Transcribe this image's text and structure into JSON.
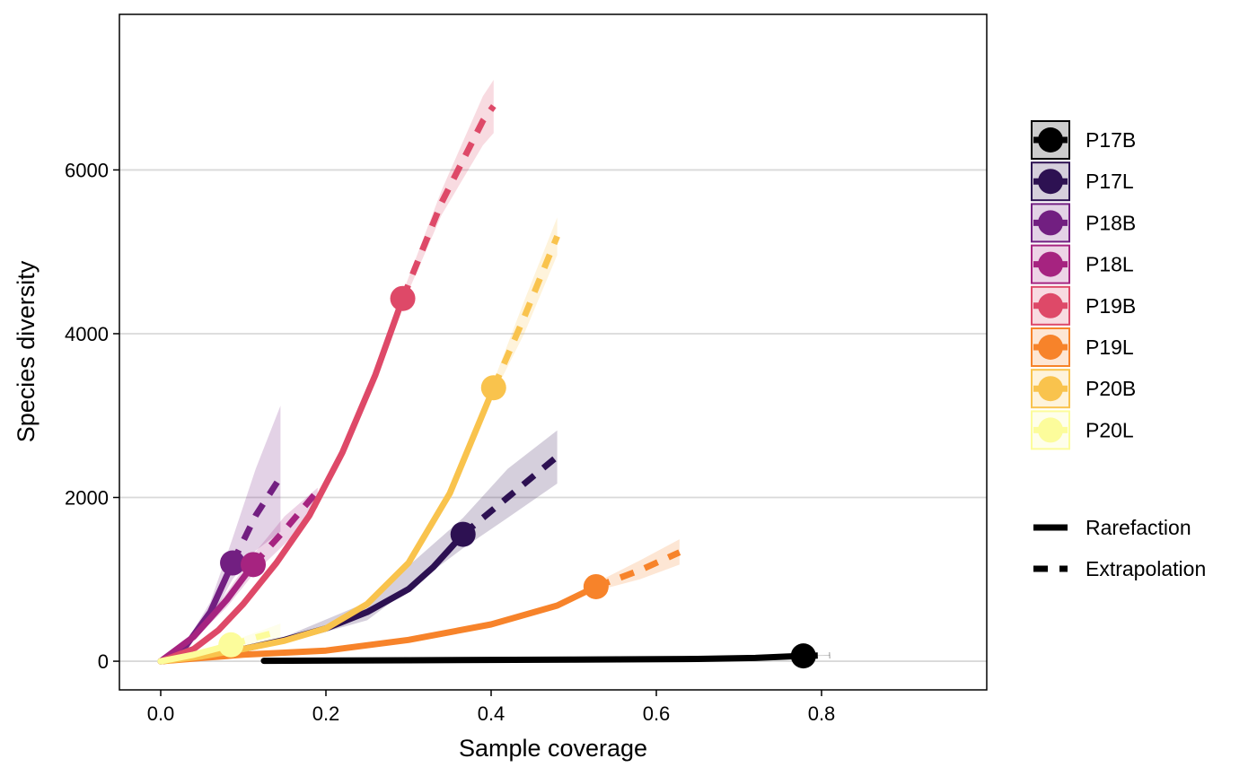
{
  "chart_data": {
    "type": "line",
    "xlabel": "Sample coverage",
    "ylabel": "Species diversity",
    "xlim": [
      -0.05,
      1.0
    ],
    "ylim": [
      -350,
      7900
    ],
    "x_ticks": [
      0.0,
      0.2,
      0.4,
      0.6,
      0.8
    ],
    "x_tick_labels": [
      "0.0",
      "0.2",
      "0.4",
      "0.6",
      "0.8"
    ],
    "y_ticks": [
      0,
      2000,
      4000,
      6000
    ],
    "y_tick_labels": [
      "0",
      "2000",
      "4000",
      "6000"
    ],
    "grid": "horizontal major",
    "legend_position": "right",
    "line_types": [
      {
        "label": "Rarefaction",
        "dash": "solid"
      },
      {
        "label": "Extrapolation",
        "dash": "dashed"
      }
    ],
    "series": [
      {
        "name": "P17B",
        "color": "#000000",
        "rarefaction": [
          [
            0.125,
            5
          ],
          [
            0.3,
            12
          ],
          [
            0.5,
            20
          ],
          [
            0.65,
            28
          ],
          [
            0.72,
            40
          ],
          [
            0.778,
            65
          ]
        ],
        "observed": [
          0.778,
          65
        ],
        "extrapolation": [
          [
            0.778,
            65
          ],
          [
            0.81,
            72
          ]
        ],
        "ci_upper": [
          [
            0.778,
            68
          ],
          [
            0.81,
            78
          ]
        ],
        "ci_lower": [
          [
            0.778,
            62
          ],
          [
            0.81,
            66
          ]
        ]
      },
      {
        "name": "P17L",
        "color": "#2d1152",
        "rarefaction": [
          [
            0.0,
            0
          ],
          [
            0.05,
            60
          ],
          [
            0.1,
            150
          ],
          [
            0.15,
            260
          ],
          [
            0.2,
            400
          ],
          [
            0.25,
            600
          ],
          [
            0.3,
            880
          ],
          [
            0.33,
            1150
          ],
          [
            0.366,
            1550
          ]
        ],
        "observed": [
          0.366,
          1550
        ],
        "extrapolation": [
          [
            0.366,
            1550
          ],
          [
            0.42,
            2000
          ],
          [
            0.48,
            2500
          ]
        ],
        "ci_upper": [
          [
            0.15,
            300
          ],
          [
            0.25,
            720
          ],
          [
            0.366,
            1750
          ],
          [
            0.42,
            2350
          ],
          [
            0.48,
            2820
          ]
        ],
        "ci_lower": [
          [
            0.15,
            220
          ],
          [
            0.25,
            500
          ],
          [
            0.366,
            1380
          ],
          [
            0.42,
            1750
          ],
          [
            0.48,
            2170
          ]
        ]
      },
      {
        "name": "P18B",
        "color": "#721f81",
        "rarefaction": [
          [
            0.0,
            0
          ],
          [
            0.03,
            180
          ],
          [
            0.06,
            600
          ],
          [
            0.087,
            1200
          ]
        ],
        "observed": [
          0.087,
          1200
        ],
        "extrapolation": [
          [
            0.087,
            1200
          ],
          [
            0.115,
            1780
          ],
          [
            0.145,
            2250
          ]
        ],
        "ci_upper": [
          [
            0.03,
            220
          ],
          [
            0.06,
            720
          ],
          [
            0.087,
            1500
          ],
          [
            0.115,
            2350
          ],
          [
            0.145,
            3120
          ]
        ],
        "ci_lower": [
          [
            0.03,
            150
          ],
          [
            0.06,
            500
          ],
          [
            0.087,
            1000
          ],
          [
            0.115,
            1350
          ],
          [
            0.145,
            1580
          ]
        ]
      },
      {
        "name": "P18L",
        "color": "#a62380",
        "rarefaction": [
          [
            0.0,
            0
          ],
          [
            0.04,
            300
          ],
          [
            0.08,
            750
          ],
          [
            0.112,
            1180
          ]
        ],
        "observed": [
          0.112,
          1180
        ],
        "extrapolation": [
          [
            0.112,
            1180
          ],
          [
            0.15,
            1600
          ],
          [
            0.19,
            2080
          ]
        ],
        "ci_upper": [
          [
            0.04,
            340
          ],
          [
            0.08,
            840
          ],
          [
            0.112,
            1300
          ],
          [
            0.15,
            1770
          ],
          [
            0.19,
            2120
          ]
        ],
        "ci_lower": [
          [
            0.04,
            260
          ],
          [
            0.08,
            660
          ],
          [
            0.112,
            1060
          ],
          [
            0.15,
            1430
          ],
          [
            0.19,
            1880
          ]
        ]
      },
      {
        "name": "P19B",
        "color": "#de4968",
        "rarefaction": [
          [
            0.0,
            0
          ],
          [
            0.04,
            150
          ],
          [
            0.07,
            380
          ],
          [
            0.1,
            700
          ],
          [
            0.14,
            1200
          ],
          [
            0.18,
            1780
          ],
          [
            0.22,
            2550
          ],
          [
            0.26,
            3500
          ],
          [
            0.293,
            4430
          ]
        ],
        "observed": [
          0.293,
          4430
        ],
        "extrapolation": [
          [
            0.293,
            4430
          ],
          [
            0.34,
            5600
          ],
          [
            0.39,
            6600
          ],
          [
            0.403,
            6780
          ]
        ],
        "ci_upper": [
          [
            0.293,
            4500
          ],
          [
            0.34,
            5750
          ],
          [
            0.39,
            6900
          ],
          [
            0.403,
            7100
          ]
        ],
        "ci_lower": [
          [
            0.293,
            4360
          ],
          [
            0.34,
            5450
          ],
          [
            0.39,
            6300
          ],
          [
            0.403,
            6450
          ]
        ]
      },
      {
        "name": "P19L",
        "color": "#f7832a",
        "rarefaction": [
          [
            0.0,
            0
          ],
          [
            0.05,
            40
          ],
          [
            0.1,
            80
          ],
          [
            0.2,
            130
          ],
          [
            0.3,
            260
          ],
          [
            0.4,
            450
          ],
          [
            0.48,
            680
          ],
          [
            0.527,
            910
          ]
        ],
        "observed": [
          0.527,
          910
        ],
        "extrapolation": [
          [
            0.527,
            910
          ],
          [
            0.58,
            1110
          ],
          [
            0.628,
            1330
          ]
        ],
        "ci_upper": [
          [
            0.527,
            960
          ],
          [
            0.58,
            1230
          ],
          [
            0.628,
            1490
          ]
        ],
        "ci_lower": [
          [
            0.527,
            860
          ],
          [
            0.58,
            1000
          ],
          [
            0.628,
            1180
          ]
        ]
      },
      {
        "name": "P20B",
        "color": "#f9c34d",
        "rarefaction": [
          [
            0.0,
            0
          ],
          [
            0.05,
            60
          ],
          [
            0.1,
            150
          ],
          [
            0.15,
            250
          ],
          [
            0.2,
            400
          ],
          [
            0.25,
            700
          ],
          [
            0.3,
            1200
          ],
          [
            0.35,
            2050
          ],
          [
            0.403,
            3340
          ]
        ],
        "observed": [
          0.403,
          3340
        ],
        "extrapolation": [
          [
            0.403,
            3340
          ],
          [
            0.44,
            4200
          ],
          [
            0.48,
            5190
          ]
        ],
        "ci_upper": [
          [
            0.403,
            3420
          ],
          [
            0.44,
            4400
          ],
          [
            0.48,
            5420
          ]
        ],
        "ci_lower": [
          [
            0.403,
            3260
          ],
          [
            0.44,
            4000
          ],
          [
            0.48,
            4960
          ]
        ]
      },
      {
        "name": "P20L",
        "color": "#fcfc9b",
        "rarefaction": [
          [
            0.0,
            0
          ],
          [
            0.04,
            80
          ],
          [
            0.085,
            200
          ]
        ],
        "observed": [
          0.085,
          200
        ],
        "extrapolation": [
          [
            0.085,
            200
          ],
          [
            0.115,
            290
          ],
          [
            0.145,
            370
          ]
        ],
        "ci_upper": [
          [
            0.04,
            100
          ],
          [
            0.085,
            240
          ],
          [
            0.145,
            460
          ]
        ],
        "ci_lower": [
          [
            0.04,
            60
          ],
          [
            0.085,
            160
          ],
          [
            0.145,
            290
          ]
        ]
      }
    ]
  }
}
